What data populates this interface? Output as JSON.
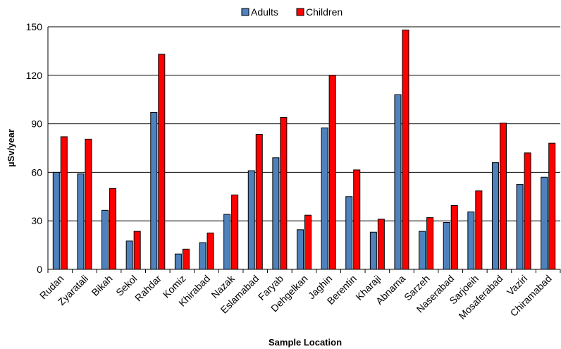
{
  "chart_data": {
    "type": "bar",
    "xlabel": "Sample Location",
    "ylabel": "µSv/year",
    "ylim": [
      0,
      150
    ],
    "yticks": [
      0,
      30,
      60,
      90,
      120,
      150
    ],
    "legend_position": "top-center",
    "categories": [
      "Rudan",
      "Zyaratali",
      "Bikah",
      "Sekol",
      "Rahdar",
      "Komiz",
      "Khirabad",
      "Nazak",
      "Eslamabad",
      "Faryab",
      "Dehgelkan",
      "Jaghin",
      "Berentin",
      "Kharaji",
      "Abnama",
      "Sarzeh",
      "Naserabad",
      "Sarjoeih",
      "Mosaferabad",
      "Vaziri",
      "Chiramabad"
    ],
    "series": [
      {
        "name": "Adults",
        "color": "#4F81BD",
        "values": [
          60,
          59,
          36.5,
          17.5,
          97,
          9.5,
          16.5,
          34,
          61,
          69,
          24.5,
          87.5,
          45,
          23,
          108,
          23.5,
          29,
          35.5,
          66,
          52.5,
          57
        ]
      },
      {
        "name": "Children",
        "color": "#FF0000",
        "values": [
          82,
          80.5,
          50,
          23.5,
          133,
          12.5,
          22.5,
          46,
          83.5,
          94,
          33.5,
          120,
          61.5,
          31,
          148,
          32,
          39.5,
          48.5,
          90.5,
          72,
          78
        ]
      }
    ]
  }
}
